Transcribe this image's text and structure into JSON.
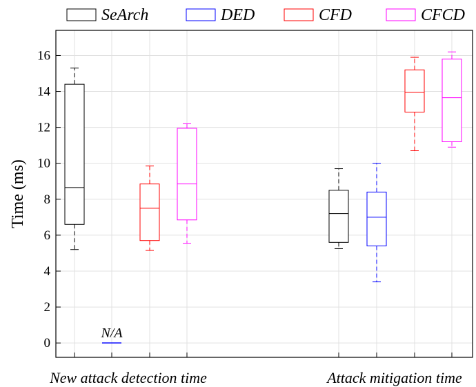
{
  "chart_data": {
    "type": "box",
    "title": "",
    "xlabel": "",
    "ylabel": "Time (ms)",
    "ylim": [
      -0.8,
      17.4
    ],
    "yticks": [
      0,
      2,
      4,
      6,
      8,
      10,
      12,
      14,
      16
    ],
    "yticklabels": [
      "0",
      "2",
      "4",
      "6",
      "8",
      "10",
      "12",
      "14",
      "16"
    ],
    "grid": true,
    "legend_position": "top",
    "categories": [
      "New attack detection time",
      "Attack mitigation time"
    ],
    "series": [
      {
        "name": "SeArch",
        "color": "#000000",
        "boxes": [
          {
            "min": 5.2,
            "q1": 6.6,
            "median": 8.65,
            "q3": 14.4,
            "max": 15.3
          },
          {
            "min": 5.25,
            "q1": 5.6,
            "median": 7.2,
            "q3": 8.5,
            "max": 9.7
          }
        ]
      },
      {
        "name": "DED",
        "color": "#0000ff",
        "boxes": [
          {
            "min": 0,
            "q1": 0,
            "median": 0,
            "q3": 0,
            "max": 0,
            "annotation": "N/A"
          },
          {
            "min": 3.4,
            "q1": 5.4,
            "median": 7.0,
            "q3": 8.4,
            "max": 10.0
          }
        ]
      },
      {
        "name": "CFD",
        "color": "#ff0000",
        "boxes": [
          {
            "min": 5.15,
            "q1": 5.7,
            "median": 7.5,
            "q3": 8.85,
            "max": 9.85
          },
          {
            "min": 10.7,
            "q1": 12.85,
            "median": 13.95,
            "q3": 15.2,
            "max": 15.9
          }
        ]
      },
      {
        "name": "CFCD",
        "color": "#ff00ff",
        "boxes": [
          {
            "min": 5.55,
            "q1": 6.85,
            "median": 8.85,
            "q3": 11.95,
            "max": 12.2
          },
          {
            "min": 10.9,
            "q1": 11.2,
            "median": 13.65,
            "q3": 15.8,
            "max": 16.2
          }
        ]
      }
    ]
  }
}
